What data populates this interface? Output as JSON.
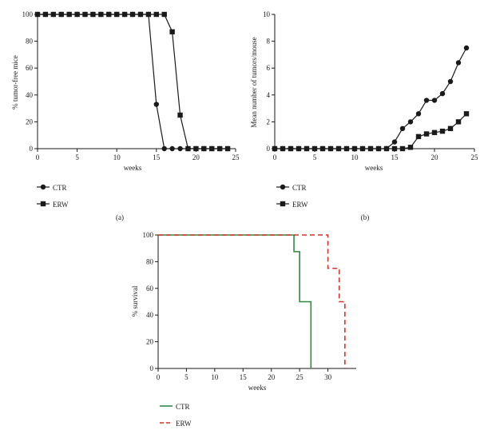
{
  "chart_data": [
    {
      "panel_label": "(a)",
      "type": "line",
      "xlabel": "weeks",
      "ylabel": "% tumor-free mice",
      "xlim": [
        0,
        25
      ],
      "ylim": [
        0,
        100
      ],
      "xticks": [
        0,
        5,
        10,
        15,
        20,
        25
      ],
      "yticks": [
        0,
        20,
        40,
        60,
        80,
        100
      ],
      "grid": false,
      "legend_position": "bottom-left",
      "series": [
        {
          "name": "CTR",
          "marker": "circle",
          "color": "#1a1a1a",
          "x": [
            0,
            1,
            2,
            3,
            4,
            5,
            6,
            7,
            8,
            9,
            10,
            11,
            12,
            13,
            14,
            15,
            16,
            17,
            18,
            19,
            20,
            21,
            22,
            23,
            24
          ],
          "y": [
            100,
            100,
            100,
            100,
            100,
            100,
            100,
            100,
            100,
            100,
            100,
            100,
            100,
            100,
            100,
            33,
            0,
            0,
            0,
            0,
            0,
            0,
            0,
            0,
            0
          ]
        },
        {
          "name": "ERW",
          "marker": "square",
          "color": "#1a1a1a",
          "x": [
            0,
            1,
            2,
            3,
            4,
            5,
            6,
            7,
            8,
            9,
            10,
            11,
            12,
            13,
            14,
            15,
            16,
            17,
            18,
            19,
            20,
            21,
            22,
            23,
            24
          ],
          "y": [
            100,
            100,
            100,
            100,
            100,
            100,
            100,
            100,
            100,
            100,
            100,
            100,
            100,
            100,
            100,
            100,
            100,
            87,
            25,
            0,
            0,
            0,
            0,
            0,
            0
          ]
        }
      ]
    },
    {
      "panel_label": "(b)",
      "type": "line",
      "xlabel": "weeks",
      "ylabel": "Mean number of tumors/mouse",
      "xlim": [
        0,
        25
      ],
      "ylim": [
        0,
        10
      ],
      "xticks": [
        0,
        5,
        10,
        15,
        20,
        25
      ],
      "yticks": [
        0,
        2,
        4,
        6,
        8,
        10
      ],
      "grid": false,
      "legend_position": "bottom-left",
      "series": [
        {
          "name": "CTR",
          "marker": "circle",
          "color": "#1a1a1a",
          "x": [
            0,
            1,
            2,
            3,
            4,
            5,
            6,
            7,
            8,
            9,
            10,
            11,
            12,
            13,
            14,
            15,
            16,
            17,
            18,
            19,
            20,
            21,
            22,
            23,
            24
          ],
          "y": [
            0,
            0,
            0,
            0,
            0,
            0,
            0,
            0,
            0,
            0,
            0,
            0,
            0,
            0,
            0,
            0.5,
            1.5,
            2.0,
            2.6,
            3.6,
            3.6,
            4.1,
            5.0,
            6.4,
            7.5
          ]
        },
        {
          "name": "ERW",
          "marker": "square",
          "color": "#1a1a1a",
          "x": [
            0,
            1,
            2,
            3,
            4,
            5,
            6,
            7,
            8,
            9,
            10,
            11,
            12,
            13,
            14,
            15,
            16,
            17,
            18,
            19,
            20,
            21,
            22,
            23,
            24
          ],
          "y": [
            0,
            0,
            0,
            0,
            0,
            0,
            0,
            0,
            0,
            0,
            0,
            0,
            0,
            0,
            0,
            0,
            0,
            0.1,
            0.9,
            1.1,
            1.2,
            1.3,
            1.5,
            2.0,
            2.6
          ]
        }
      ]
    },
    {
      "type": "line",
      "step": true,
      "xlabel": "weeks",
      "ylabel": "% survival",
      "xlim": [
        0,
        35
      ],
      "ylim": [
        0,
        100
      ],
      "xticks": [
        0,
        5,
        10,
        15,
        20,
        25,
        30
      ],
      "yticks": [
        0,
        20,
        40,
        60,
        80,
        100
      ],
      "grid": false,
      "legend_position": "bottom-left",
      "series": [
        {
          "name": "CTR",
          "style": "solid",
          "color": "#2e8b3e",
          "x": [
            0,
            24,
            24,
            25,
            25,
            27,
            27
          ],
          "y": [
            100,
            100,
            87.5,
            87.5,
            50,
            50,
            0
          ]
        },
        {
          "name": "ERW",
          "style": "dashed",
          "color": "#d0342c",
          "x": [
            0,
            30,
            30,
            32,
            32,
            33,
            33
          ],
          "y": [
            100,
            100,
            75,
            75,
            50,
            50,
            0
          ]
        }
      ]
    }
  ]
}
